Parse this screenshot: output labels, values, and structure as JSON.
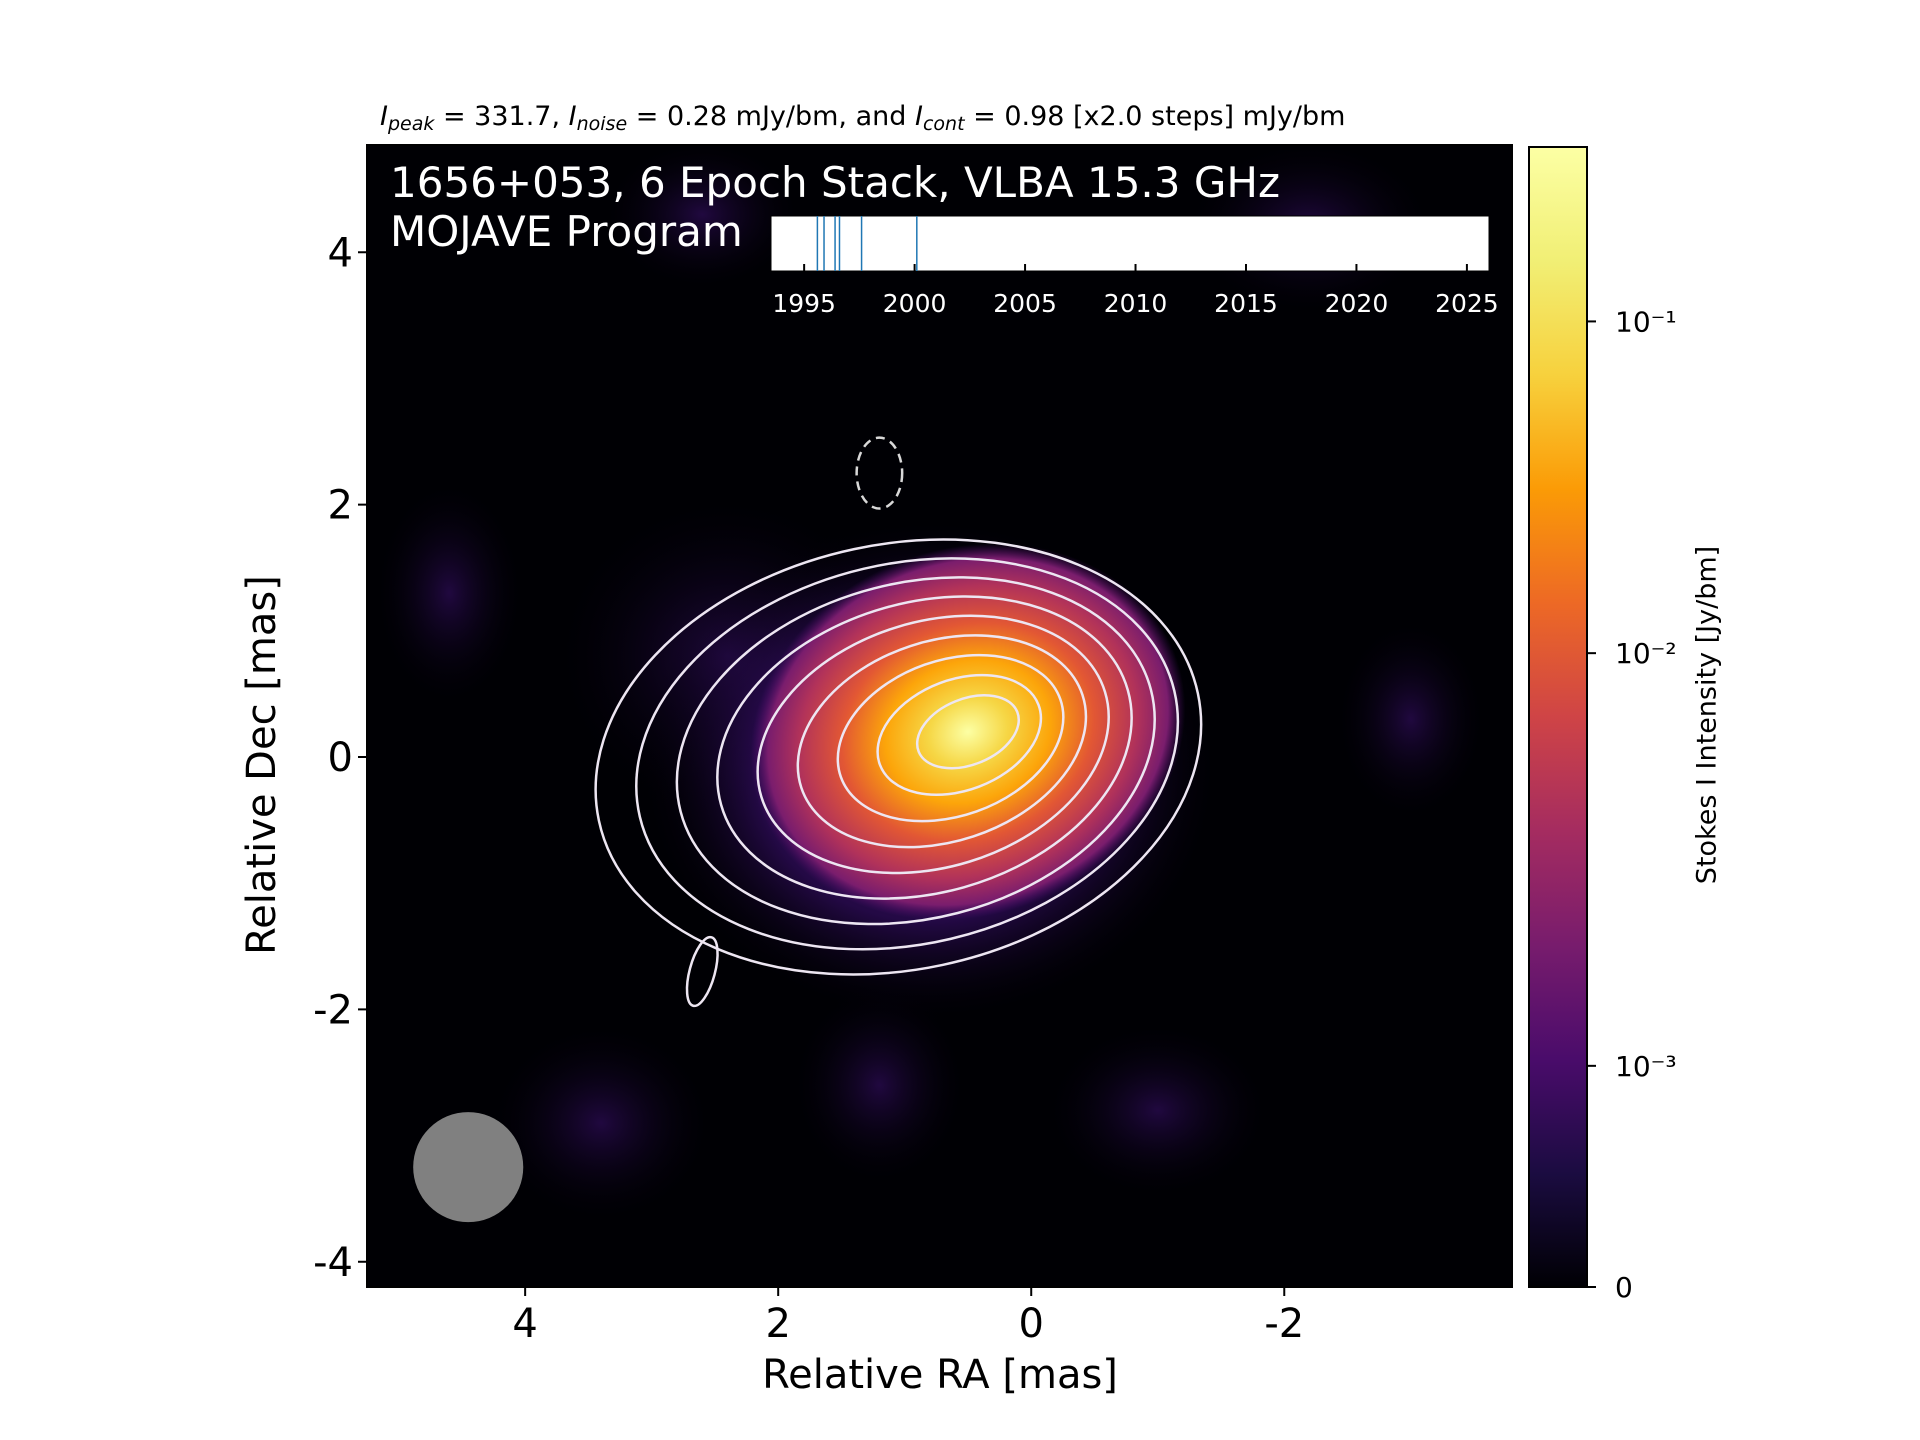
{
  "header": {
    "peak_sym": "I",
    "peak_sub": "peak",
    "peak_val": "331.7",
    "noise_sym": "I",
    "noise_sub": "noise",
    "noise_val": "0.28 mJy/bm, and",
    "cont_sym": "I",
    "cont_sub": "cont",
    "cont_val": "0.98 [x2.0 steps] mJy/bm"
  },
  "title_line1": "1656+053, 6 Epoch Stack, VLBA 15.3 GHz",
  "title_line2": "MOJAVE Program",
  "chart_data": {
    "type": "heatmap",
    "title": "",
    "xlabel": "Relative RA [mas]",
    "ylabel": "Relative Dec [mas]",
    "xlim": [
      5.25,
      -3.8
    ],
    "ylim": [
      -4.2,
      4.85
    ],
    "x_ticks": [
      4,
      2,
      0,
      -2
    ],
    "x_tick_labels": [
      "4",
      "2",
      "0",
      "-2"
    ],
    "y_ticks": [
      4,
      2,
      0,
      -2,
      -4
    ],
    "y_tick_labels": [
      "4",
      "2",
      "0",
      "-2",
      "-4"
    ],
    "colormap": "inferno",
    "colorbar": {
      "label": "Stokes I Intensity [Jy/bm]",
      "scale": "symlog",
      "range": [
        0,
        0.3317
      ],
      "ticks": [
        {
          "value": 0,
          "label": "0",
          "frac": 0.0
        },
        {
          "value": 0.001,
          "label": "10⁻³",
          "frac": 0.194
        },
        {
          "value": 0.01,
          "label": "10⁻²",
          "frac": 0.556
        },
        {
          "value": 0.1,
          "label": "10⁻¹",
          "frac": 0.847
        }
      ]
    },
    "peak": {
      "ra": 0.5,
      "dec": 0.2,
      "value_mJy": 331.7
    },
    "noise_mJy": 0.28,
    "lowest_contour_mJy": 0.98,
    "contour_step": 2.0,
    "contour_count": 9,
    "negative_contour": {
      "ra": 1.2,
      "dec": 2.25
    },
    "small_contour": {
      "ra": 2.6,
      "dec": -1.7
    },
    "beam": {
      "ra": 4.45,
      "dec": -3.25,
      "major_mas": 0.87,
      "minor_mas": 0.87
    },
    "epoch_inset": {
      "x_range": [
        1993.5,
        2026
      ],
      "ticks": [
        1995,
        2000,
        2005,
        2010,
        2015,
        2020,
        2025
      ],
      "tick_labels": [
        "1995",
        "2000",
        "2005",
        "2010",
        "2015",
        "2020",
        "2025"
      ],
      "epochs": [
        1995.6,
        1995.9,
        1996.4,
        1996.6,
        1997.6,
        2000.1
      ]
    },
    "colors": {
      "contour": "#ede6f2",
      "negative_contour": "#d8d8d8",
      "beam": "#808080",
      "epoch_line": "#1f77b4"
    }
  }
}
